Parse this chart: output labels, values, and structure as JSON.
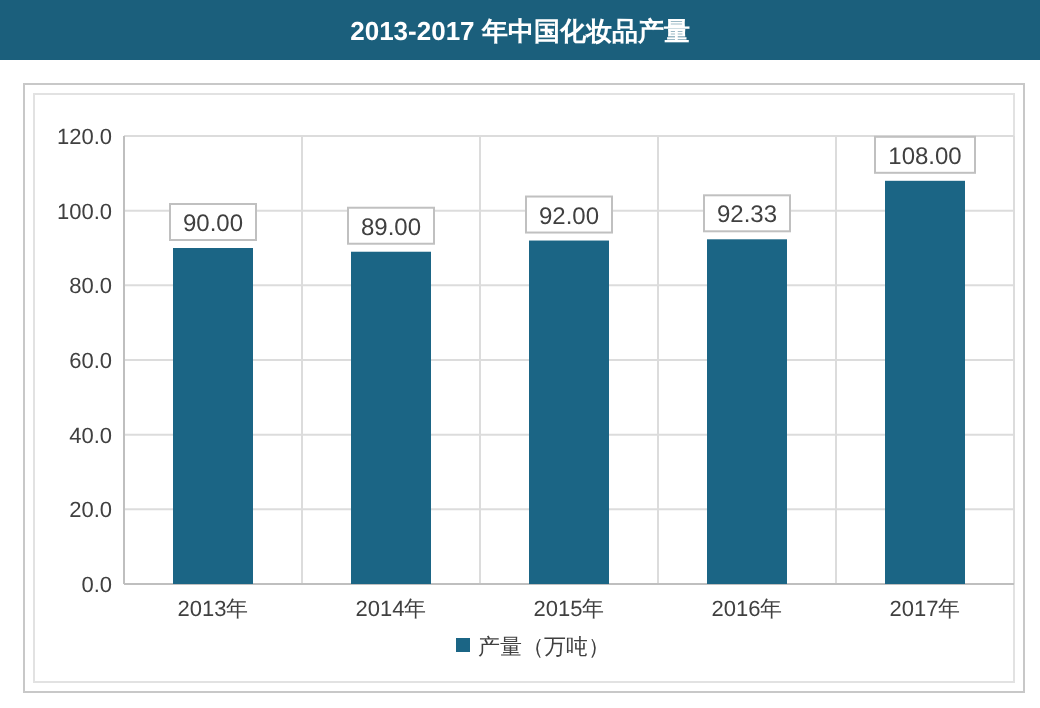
{
  "chart_data": {
    "type": "bar",
    "title": "2013-2017 年中国化妆品产量",
    "categories": [
      "2013年",
      "2014年",
      "2015年",
      "2016年",
      "2017年"
    ],
    "series": [
      {
        "name": "产量（万吨）",
        "color": "#1b6585",
        "values": [
          90,
          89,
          92,
          92.33,
          108
        ],
        "value_labels": [
          "90.00",
          "89.00",
          "92.00",
          "92.33",
          "108.00"
        ]
      }
    ],
    "ylim": [
      0,
      120
    ],
    "yticks": [
      {
        "value": 0,
        "label": "0.0"
      },
      {
        "value": 20,
        "label": "20.0"
      },
      {
        "value": 40,
        "label": "40.0"
      },
      {
        "value": 60,
        "label": "60.0"
      },
      {
        "value": 80,
        "label": "80.0"
      },
      {
        "value": 100,
        "label": "100.0"
      },
      {
        "value": 120,
        "label": "120.0"
      }
    ],
    "grid": true,
    "legend": "bottom"
  }
}
